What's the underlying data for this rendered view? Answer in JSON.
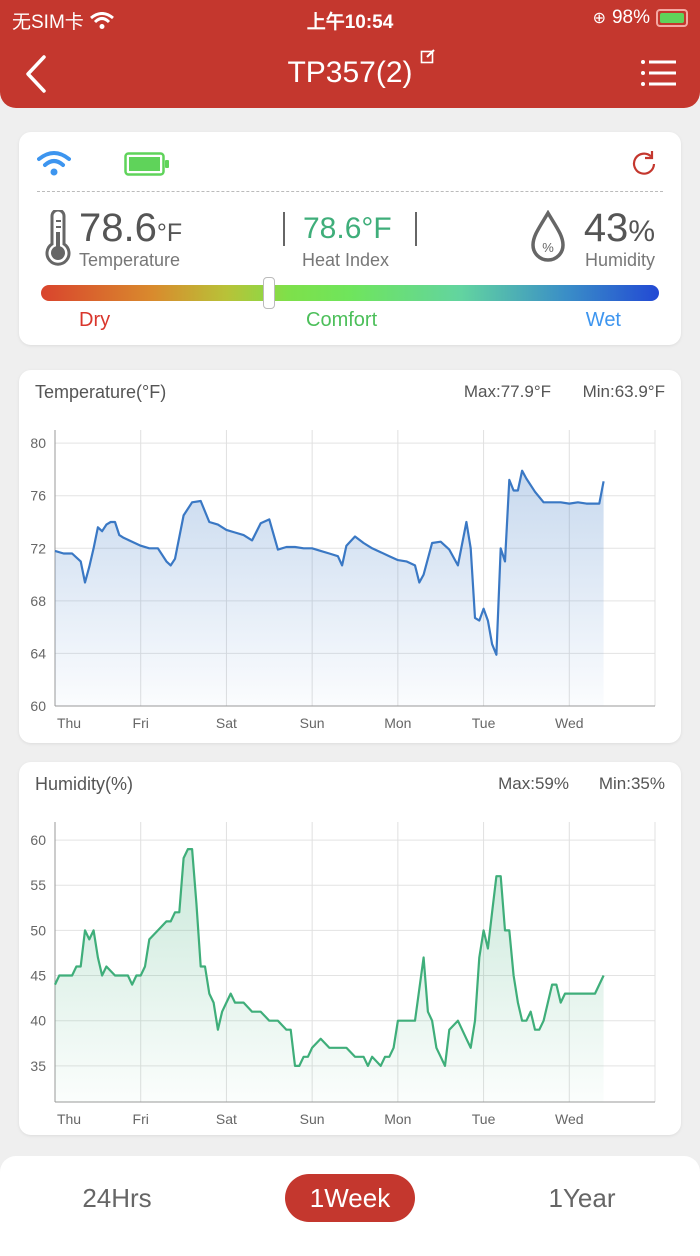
{
  "status_bar": {
    "carrier": "无SIM卡",
    "time": "上午10:54",
    "battery": "98%"
  },
  "nav": {
    "title": "TP357(2)",
    "back_icon": "chevron-left-icon",
    "menu_icon": "list-menu-icon",
    "edit_icon": "edit-icon"
  },
  "summary": {
    "temperature": {
      "value": "78.6",
      "unit": "°F",
      "label": "Temperature"
    },
    "heat_index": {
      "value": "78.6°F",
      "label": "Heat Index"
    },
    "humidity": {
      "value": "43",
      "unit": "%",
      "label": "Humidity"
    },
    "comfort_scale": {
      "dry": "Dry",
      "comfort": "Comfort",
      "wet": "Wet",
      "position_pct": 37
    },
    "colors": {
      "wifi": "#3d95ef",
      "battery": "#5fd35a",
      "refresh": "#c4372e",
      "heat_index": "#3fae7a",
      "dry": "#d9362c",
      "comfort": "#4cbf5a",
      "wet": "#3d95ef"
    }
  },
  "temperature_chart": {
    "title": "Temperature(°F)",
    "max": "Max:77.9°F",
    "min": "Min:63.9°F"
  },
  "humidity_chart": {
    "title": "Humidity(%)",
    "max": "Max:59%",
    "min": "Min:35%"
  },
  "range_tabs": [
    {
      "label": "24Hrs",
      "active": false
    },
    {
      "label": "1Week",
      "active": true
    },
    {
      "label": "1Year",
      "active": false
    }
  ],
  "chart_data": [
    {
      "type": "area",
      "title": "Temperature(°F)",
      "xlabel": "",
      "ylabel": "",
      "categories": [
        "Thu",
        "Fri",
        "Sat",
        "Sun",
        "Mon",
        "Tue",
        "Wed"
      ],
      "ylim": [
        60,
        81
      ],
      "yticks": [
        60,
        64,
        68,
        72,
        76,
        80
      ],
      "color": "#3a78c4",
      "grid": true,
      "x": [
        0,
        0.1,
        0.2,
        0.3,
        0.35,
        0.4,
        0.45,
        0.5,
        0.55,
        0.6,
        0.65,
        0.7,
        0.75,
        0.8,
        0.9,
        1.0,
        1.1,
        1.2,
        1.3,
        1.35,
        1.4,
        1.5,
        1.6,
        1.7,
        1.8,
        1.9,
        2.0,
        2.1,
        2.2,
        2.3,
        2.4,
        2.5,
        2.6,
        2.7,
        2.8,
        2.9,
        3.0,
        3.1,
        3.2,
        3.3,
        3.35,
        3.4,
        3.5,
        3.6,
        3.7,
        3.8,
        3.9,
        4.0,
        4.1,
        4.2,
        4.25,
        4.3,
        4.4,
        4.5,
        4.6,
        4.7,
        4.8,
        4.85,
        4.9,
        4.95,
        5.0,
        5.05,
        5.1,
        5.15,
        5.2,
        5.25,
        5.3,
        5.35,
        5.4,
        5.45,
        5.5,
        5.6,
        5.7,
        5.8,
        5.9,
        6.0,
        6.1,
        6.2,
        6.3,
        6.35,
        6.4
      ],
      "values": [
        71.8,
        71.6,
        71.6,
        71.0,
        69.4,
        70.6,
        72.0,
        73.6,
        73.3,
        73.8,
        74.0,
        74.0,
        73.0,
        72.8,
        72.5,
        72.2,
        72.0,
        72.0,
        71.0,
        70.7,
        71.2,
        74.5,
        75.5,
        75.6,
        74.0,
        73.8,
        73.4,
        73.2,
        73.0,
        72.6,
        73.9,
        74.2,
        71.9,
        72.1,
        72.1,
        72.0,
        72.0,
        71.8,
        71.6,
        71.4,
        70.7,
        72.2,
        72.9,
        72.4,
        72.0,
        71.7,
        71.4,
        71.1,
        71.0,
        70.7,
        69.4,
        70.0,
        72.4,
        72.5,
        71.9,
        70.7,
        74.0,
        72.0,
        66.7,
        66.5,
        67.4,
        66.5,
        64.7,
        63.9,
        72.0,
        71.0,
        77.2,
        76.4,
        76.4,
        77.9,
        77.3,
        76.3,
        75.5,
        75.5,
        75.5,
        75.4,
        75.5,
        75.4,
        75.4,
        75.4,
        77.1
      ]
    },
    {
      "type": "area",
      "title": "Humidity(%)",
      "xlabel": "",
      "ylabel": "",
      "categories": [
        "Thu",
        "Fri",
        "Sat",
        "Sun",
        "Mon",
        "Tue",
        "Wed"
      ],
      "ylim": [
        31,
        62
      ],
      "yticks": [
        35,
        40,
        45,
        50,
        55,
        60
      ],
      "color": "#3fae7a",
      "grid": true,
      "x": [
        0,
        0.05,
        0.2,
        0.25,
        0.3,
        0.35,
        0.4,
        0.45,
        0.5,
        0.55,
        0.6,
        0.7,
        0.8,
        0.85,
        0.9,
        0.95,
        1.0,
        1.05,
        1.1,
        1.2,
        1.3,
        1.35,
        1.4,
        1.45,
        1.5,
        1.55,
        1.6,
        1.65,
        1.7,
        1.75,
        1.8,
        1.85,
        1.9,
        1.95,
        2.0,
        2.05,
        2.1,
        2.2,
        2.3,
        2.4,
        2.5,
        2.6,
        2.7,
        2.75,
        2.8,
        2.85,
        2.9,
        2.95,
        3.0,
        3.1,
        3.2,
        3.25,
        3.3,
        3.4,
        3.5,
        3.6,
        3.65,
        3.7,
        3.8,
        3.85,
        3.9,
        3.95,
        4.0,
        4.1,
        4.2,
        4.3,
        4.35,
        4.4,
        4.45,
        4.5,
        4.55,
        4.6,
        4.7,
        4.8,
        4.85,
        4.9,
        4.95,
        5.0,
        5.05,
        5.1,
        5.15,
        5.2,
        5.25,
        5.3,
        5.35,
        5.4,
        5.45,
        5.5,
        5.55,
        5.6,
        5.65,
        5.7,
        5.8,
        5.85,
        5.9,
        5.95,
        6.0,
        6.1,
        6.2,
        6.3,
        6.4
      ],
      "values": [
        44,
        45,
        45,
        46,
        46,
        50,
        49,
        50,
        47,
        45,
        46,
        45,
        45,
        45,
        44,
        45,
        45,
        46,
        49,
        50,
        51,
        51,
        52,
        52,
        58,
        59,
        59,
        53,
        46,
        46,
        43,
        42,
        39,
        41,
        42,
        43,
        42,
        42,
        41,
        41,
        40,
        40,
        39,
        39,
        35,
        35,
        36,
        36,
        37,
        38,
        37,
        37,
        37,
        37,
        36,
        36,
        35,
        36,
        35,
        36,
        36,
        37,
        40,
        40,
        40,
        47,
        41,
        40,
        37,
        36,
        35,
        39,
        40,
        38,
        37,
        40,
        47,
        50,
        48,
        52,
        56,
        56,
        50,
        50,
        45,
        42,
        40,
        40,
        41,
        39,
        39,
        40,
        44,
        44,
        42,
        43,
        43,
        43,
        43,
        43,
        45
      ]
    }
  ]
}
